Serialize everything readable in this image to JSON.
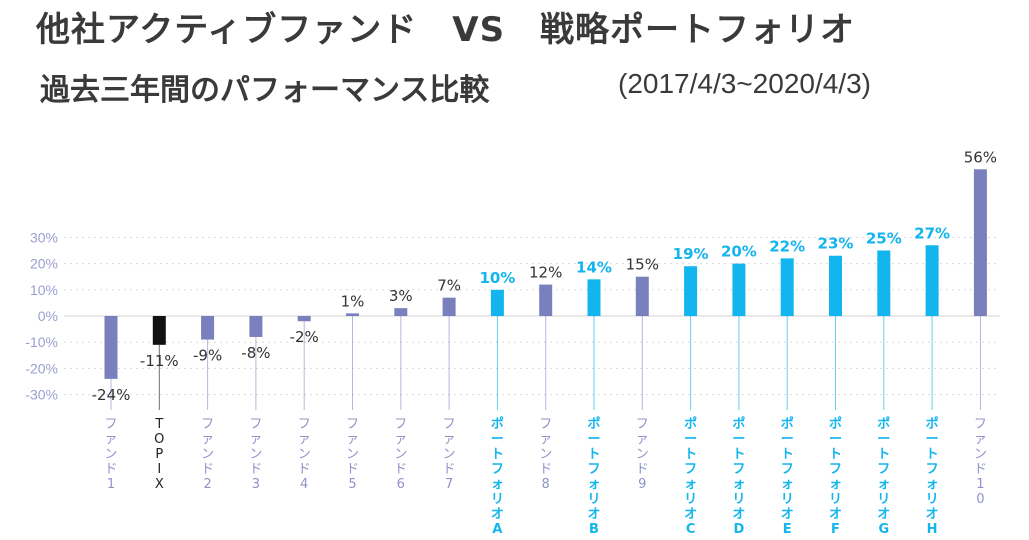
{
  "header": {
    "title": "他社アクティブファンド　VS　戦略ポートフォリオ",
    "subtitle": "過去三年間のパフォーマンス比較",
    "period": "(2017/4/3~2020/4/3)"
  },
  "colors": {
    "other_fund": "#7a80bd",
    "topix": "#111111",
    "portfolio": "#13b5ef",
    "other_label": "#8f93c8",
    "axis_label": "#9a9fcf",
    "value_label": "#333333",
    "grid": "#d9d9d9"
  },
  "chart_data": {
    "type": "bar",
    "categories": [
      "ファンド1",
      "TOPIX",
      "ファンド2",
      "ファンド3",
      "ファンド4",
      "ファンド5",
      "ファンド6",
      "ファンド7",
      "ポートフォリオA",
      "ファンド8",
      "ポートフォリオB",
      "ファンド9",
      "ポートフォリオC",
      "ポートフォリオD",
      "ポートフォリオE",
      "ポートフォリオF",
      "ポートフォリオG",
      "ポートフォリオH",
      "ファンド10"
    ],
    "values": [
      -24,
      -11,
      -9,
      -8,
      -2,
      1,
      3,
      7,
      10,
      12,
      14,
      15,
      19,
      20,
      22,
      23,
      25,
      27,
      56
    ],
    "value_labels": [
      "-24%",
      "-11%",
      "-9%",
      "-8%",
      "-2%",
      "1%",
      "3%",
      "7%",
      "10%",
      "12%",
      "14%",
      "15%",
      "19%",
      "20%",
      "22%",
      "23%",
      "25%",
      "27%",
      "56%"
    ],
    "groups": [
      "other",
      "topix",
      "other",
      "other",
      "other",
      "other",
      "other",
      "other",
      "portfolio",
      "other",
      "portfolio",
      "other",
      "portfolio",
      "portfolio",
      "portfolio",
      "portfolio",
      "portfolio",
      "portfolio",
      "other"
    ],
    "yticks": [
      30,
      20,
      10,
      0,
      -10,
      -20,
      -30
    ],
    "ytick_labels": [
      "30%",
      "20%",
      "10%",
      "0%",
      "-10%",
      "-20%",
      "-30%"
    ],
    "ylim": [
      -30,
      56
    ],
    "grid": true
  }
}
